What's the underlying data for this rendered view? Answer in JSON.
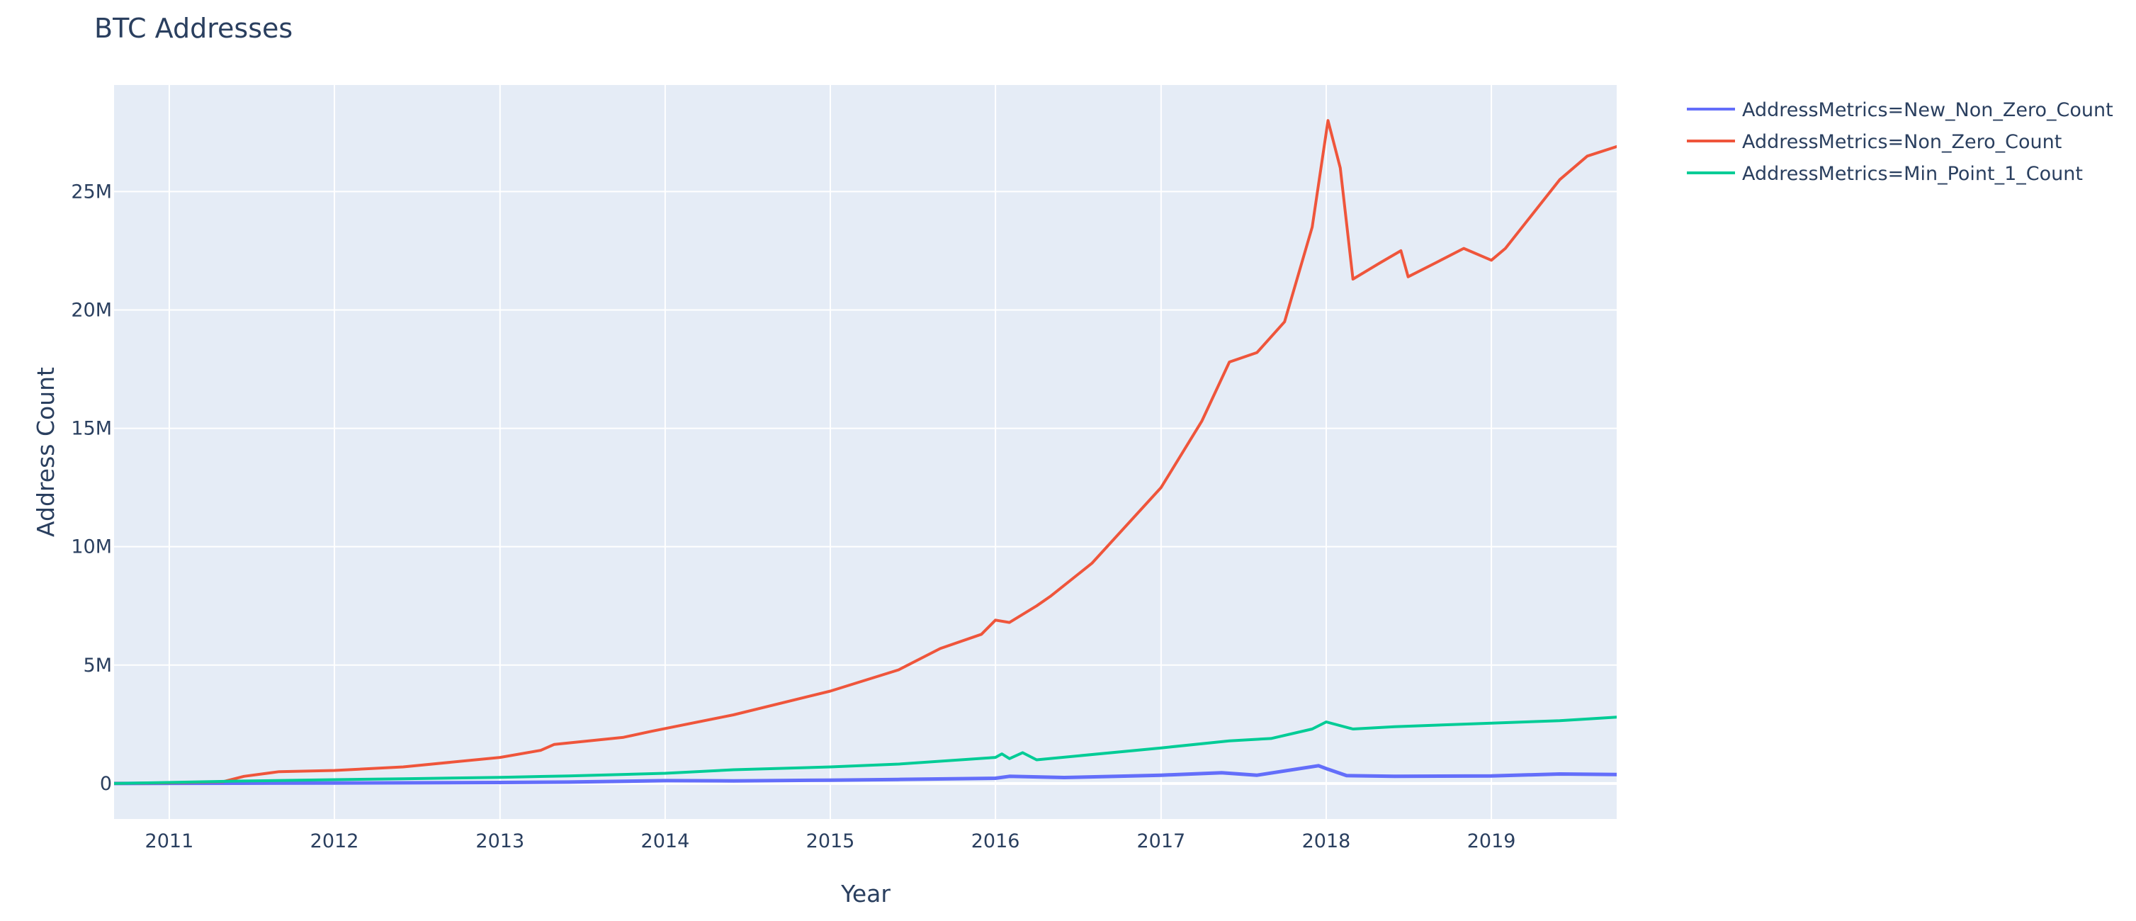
{
  "chart_data": {
    "type": "line",
    "title": "BTC Addresses",
    "xlabel": "Year",
    "ylabel": "Address Count",
    "x_type": "date",
    "xlim": [
      "2010-09-01",
      "2019-10-05"
    ],
    "ylim": [
      -1500000,
      29500000
    ],
    "x_ticks": [
      {
        "value": "2011-01-01",
        "label": "2011"
      },
      {
        "value": "2012-01-01",
        "label": "2012"
      },
      {
        "value": "2013-01-01",
        "label": "2013"
      },
      {
        "value": "2014-01-01",
        "label": "2014"
      },
      {
        "value": "2015-01-01",
        "label": "2015"
      },
      {
        "value": "2016-01-01",
        "label": "2016"
      },
      {
        "value": "2017-01-01",
        "label": "2017"
      },
      {
        "value": "2018-01-01",
        "label": "2018"
      },
      {
        "value": "2019-01-01",
        "label": "2019"
      }
    ],
    "y_ticks": [
      {
        "value": 0,
        "label": "0"
      },
      {
        "value": 5000000,
        "label": "5M"
      },
      {
        "value": 10000000,
        "label": "10M"
      },
      {
        "value": 15000000,
        "label": "15M"
      },
      {
        "value": 20000000,
        "label": "20M"
      },
      {
        "value": 25000000,
        "label": "25M"
      }
    ],
    "grid": true,
    "plot_bgcolor": "#e5ecf6",
    "legend_position": "top-right outside",
    "series": [
      {
        "name": "AddressMetrics=New_Non_Zero_Count",
        "color": "#636efa",
        "points": [
          [
            "2010-09-01",
            0
          ],
          [
            "2011-06-01",
            10000
          ],
          [
            "2012-01-01",
            20000
          ],
          [
            "2013-01-01",
            40000
          ],
          [
            "2013-06-01",
            60000
          ],
          [
            "2014-01-01",
            120000
          ],
          [
            "2014-06-01",
            110000
          ],
          [
            "2015-01-01",
            140000
          ],
          [
            "2015-06-01",
            170000
          ],
          [
            "2016-01-01",
            220000
          ],
          [
            "2016-02-01",
            300000
          ],
          [
            "2016-06-01",
            250000
          ],
          [
            "2017-01-01",
            350000
          ],
          [
            "2017-05-15",
            450000
          ],
          [
            "2017-08-01",
            350000
          ],
          [
            "2017-12-15",
            750000
          ],
          [
            "2018-01-05",
            600000
          ],
          [
            "2018-02-15",
            330000
          ],
          [
            "2018-06-01",
            300000
          ],
          [
            "2019-01-01",
            320000
          ],
          [
            "2019-06-01",
            400000
          ],
          [
            "2019-10-05",
            380000
          ]
        ]
      },
      {
        "name": "AddressMetrics=Non_Zero_Count",
        "color": "#ef553b",
        "points": [
          [
            "2010-09-01",
            0
          ],
          [
            "2011-01-01",
            30000
          ],
          [
            "2011-05-01",
            80000
          ],
          [
            "2011-06-15",
            300000
          ],
          [
            "2011-09-01",
            500000
          ],
          [
            "2012-01-01",
            550000
          ],
          [
            "2012-06-01",
            700000
          ],
          [
            "2013-01-01",
            1100000
          ],
          [
            "2013-04-01",
            1400000
          ],
          [
            "2013-05-01",
            1650000
          ],
          [
            "2013-10-01",
            1950000
          ],
          [
            "2013-12-01",
            2200000
          ],
          [
            "2014-06-01",
            2900000
          ],
          [
            "2015-01-01",
            3900000
          ],
          [
            "2015-06-01",
            4800000
          ],
          [
            "2015-09-01",
            5700000
          ],
          [
            "2015-12-01",
            6300000
          ],
          [
            "2016-01-01",
            6900000
          ],
          [
            "2016-02-01",
            6800000
          ],
          [
            "2016-04-01",
            7500000
          ],
          [
            "2016-05-01",
            7900000
          ],
          [
            "2016-08-01",
            9300000
          ],
          [
            "2017-01-01",
            12500000
          ],
          [
            "2017-04-01",
            15300000
          ],
          [
            "2017-06-01",
            17800000
          ],
          [
            "2017-08-01",
            18200000
          ],
          [
            "2017-10-01",
            19500000
          ],
          [
            "2017-12-01",
            23500000
          ],
          [
            "2018-01-05",
            28000000
          ],
          [
            "2018-02-01",
            26000000
          ],
          [
            "2018-03-01",
            21300000
          ],
          [
            "2018-05-01",
            22000000
          ],
          [
            "2018-06-15",
            22500000
          ],
          [
            "2018-07-01",
            21400000
          ],
          [
            "2018-09-01",
            22000000
          ],
          [
            "2018-11-01",
            22600000
          ],
          [
            "2019-01-01",
            22100000
          ],
          [
            "2019-02-01",
            22600000
          ],
          [
            "2019-06-01",
            25500000
          ],
          [
            "2019-08-01",
            26500000
          ],
          [
            "2019-10-05",
            26900000
          ]
        ]
      },
      {
        "name": "AddressMetrics=Min_Point_1_Count",
        "color": "#00cc96",
        "points": [
          [
            "2010-09-01",
            0
          ],
          [
            "2011-06-01",
            100000
          ],
          [
            "2012-01-01",
            160000
          ],
          [
            "2012-06-01",
            200000
          ],
          [
            "2013-01-01",
            260000
          ],
          [
            "2013-06-01",
            320000
          ],
          [
            "2014-01-01",
            430000
          ],
          [
            "2014-06-01",
            580000
          ],
          [
            "2015-01-01",
            700000
          ],
          [
            "2015-06-01",
            820000
          ],
          [
            "2016-01-01",
            1100000
          ],
          [
            "2016-01-15",
            1250000
          ],
          [
            "2016-02-01",
            1050000
          ],
          [
            "2016-03-01",
            1300000
          ],
          [
            "2016-04-01",
            1000000
          ],
          [
            "2017-01-01",
            1500000
          ],
          [
            "2017-06-01",
            1800000
          ],
          [
            "2017-09-01",
            1900000
          ],
          [
            "2017-12-01",
            2300000
          ],
          [
            "2018-01-01",
            2600000
          ],
          [
            "2018-03-01",
            2300000
          ],
          [
            "2018-06-01",
            2400000
          ],
          [
            "2019-01-01",
            2550000
          ],
          [
            "2019-06-01",
            2650000
          ],
          [
            "2019-10-05",
            2800000
          ]
        ]
      }
    ]
  }
}
